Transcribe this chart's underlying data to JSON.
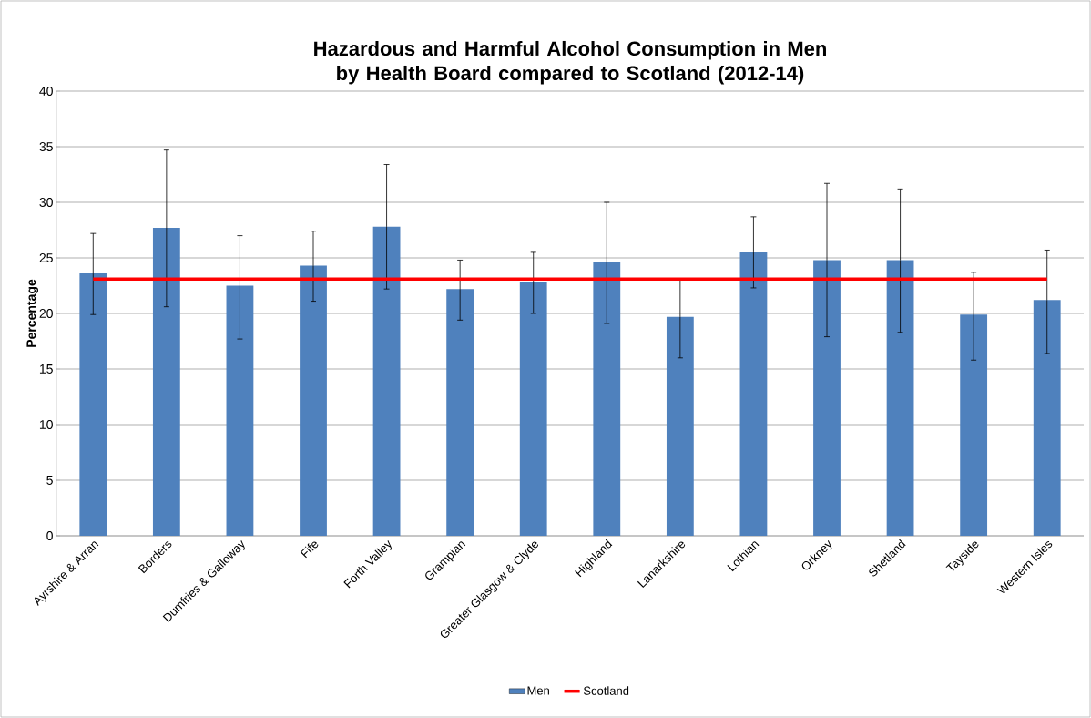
{
  "chart_data": {
    "type": "bar",
    "title": "Hazardous and Harmful Alcohol Consumption in Men by Health Board compared to Scotland (2012-14)",
    "ylabel": "Percentage",
    "categories": [
      "Ayrshire & Arran",
      "Borders",
      "Dumfries & Galloway",
      "Fife",
      "Forth Valley",
      "Grampian",
      "Greater Glasgow & Clyde",
      "Highland",
      "Lanarkshire",
      "Lothian",
      "Orkney",
      "Shetland",
      "Tayside",
      "Western Isles"
    ],
    "series": [
      {
        "name": "Men",
        "color": "#4f81bd",
        "values": [
          23.6,
          27.7,
          22.5,
          24.3,
          27.8,
          22.2,
          22.8,
          24.6,
          19.7,
          25.5,
          24.8,
          24.8,
          19.9,
          21.2
        ],
        "errors": [
          [
            19.9,
            27.2
          ],
          [
            20.6,
            34.7
          ],
          [
            17.7,
            27.0
          ],
          [
            21.1,
            27.4
          ],
          [
            22.2,
            33.4
          ],
          [
            19.4,
            24.8
          ],
          [
            20.0,
            25.5
          ],
          [
            19.1,
            30.0
          ],
          [
            16.0,
            23.1
          ],
          [
            22.3,
            28.7
          ],
          [
            17.9,
            31.7
          ],
          [
            18.3,
            31.2
          ],
          [
            15.8,
            23.7
          ],
          [
            16.4,
            25.7
          ]
        ]
      },
      {
        "name": "Scotland",
        "type": "line",
        "color": "#ff0000",
        "values": [
          23.1,
          23.1,
          23.1,
          23.1,
          23.1,
          23.1,
          23.1,
          23.1,
          23.1,
          23.1,
          23.1,
          23.1,
          23.1,
          23.1
        ]
      }
    ],
    "ylim": [
      0,
      40
    ],
    "yticks": [
      0,
      5,
      10,
      15,
      20,
      25,
      30,
      35,
      40
    ],
    "grid": "y",
    "legend": "bottom",
    "marker": "none"
  }
}
